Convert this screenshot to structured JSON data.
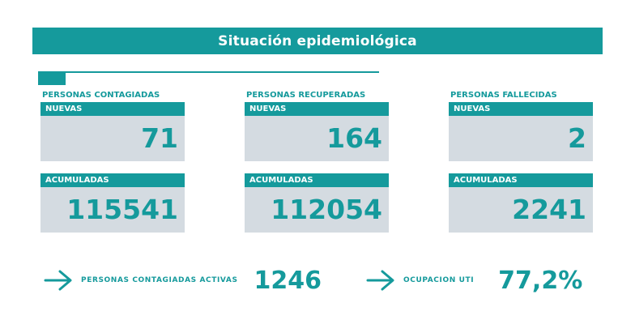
{
  "title": "Situación epidemiológica",
  "groups": [
    {
      "label": "PERSONAS CONTAGIADAS",
      "nuevas_label": "NUEVAS",
      "nuevas_value": "71",
      "acumuladas_label": "ACUMULADAS",
      "acumuladas_value": "115541"
    },
    {
      "label": "PERSONAS RECUPERADAS",
      "nuevas_label": "NUEVAS",
      "nuevas_value": "164",
      "acumuladas_label": "ACUMULADAS",
      "acumuladas_value": "112054"
    },
    {
      "label": "PERSONAS FALLECIDAS",
      "nuevas_label": "NUEVAS",
      "nuevas_value": "2",
      "acumuladas_label": "ACUMULADAS",
      "acumuladas_value": "2241"
    }
  ],
  "activas": {
    "label": "PERSONAS CONTAGIADAS ACTIVAS",
    "value": "1246"
  },
  "uti": {
    "label": "OCUPACION UTI",
    "value": "77,2%"
  },
  "colors": {
    "accent": "#159a9c",
    "card_bg": "#d4dbe1"
  },
  "icons": {
    "arrow": "arrow-right-icon"
  }
}
